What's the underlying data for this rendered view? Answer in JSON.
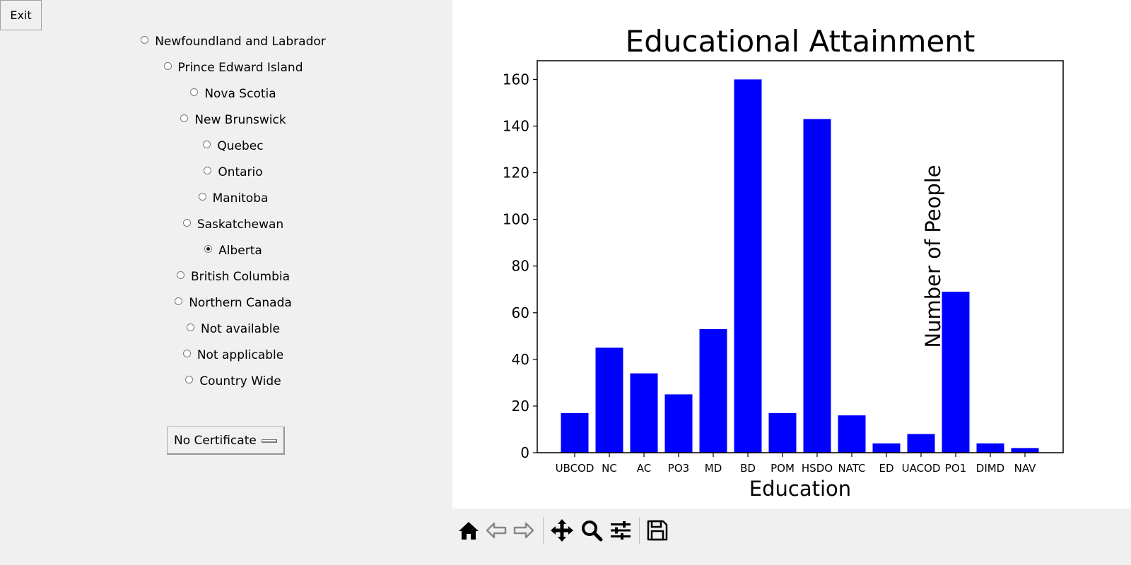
{
  "window": {
    "exit_label": "Exit"
  },
  "provinces": {
    "selected_index": 8,
    "items": [
      "Newfoundland and Labrador",
      "Prince Edward Island",
      "Nova Scotia",
      "New Brunswick",
      "Quebec",
      "Ontario",
      "Manitoba",
      "Saskatchewan",
      "Alberta",
      "British Columbia",
      "Northern Canada",
      "Not available",
      "Not applicable",
      "Country Wide"
    ]
  },
  "certificate_menu": {
    "selected": "No Certificate"
  },
  "toolbar": {
    "icons": [
      "home-icon",
      "back-arrow-icon",
      "forward-arrow-icon",
      "pan-icon",
      "zoom-icon",
      "configure-subplots-icon",
      "save-icon"
    ]
  },
  "chart_data": {
    "type": "bar",
    "title": "Educational Attainment",
    "xlabel": "Education",
    "ylabel": "Number of People",
    "categories": [
      "UBCOD",
      "NC",
      "AC",
      "PO3",
      "MD",
      "BD",
      "POM",
      "HSDO",
      "NATC",
      "ED",
      "UACOD",
      "PO1",
      "DIMD",
      "NAV"
    ],
    "values": [
      17,
      45,
      34,
      25,
      53,
      160,
      17,
      143,
      16,
      4,
      8,
      69,
      4,
      2
    ],
    "ylim": [
      0,
      168
    ],
    "yticks": [
      0,
      20,
      40,
      60,
      80,
      100,
      120,
      140,
      160
    ],
    "bar_color": "#0000ff",
    "grid": false
  }
}
